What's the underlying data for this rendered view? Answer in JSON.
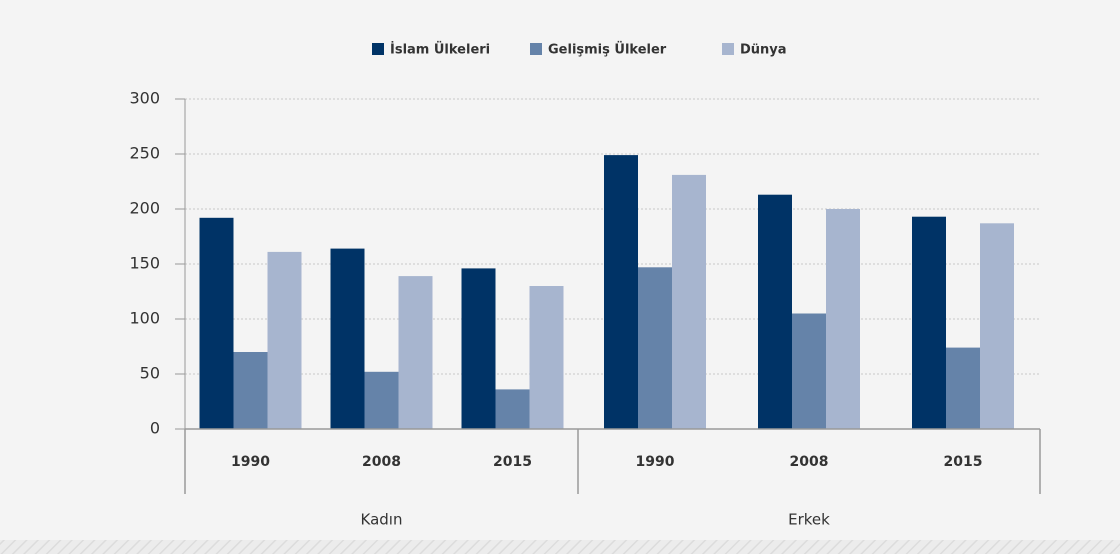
{
  "chart_data": {
    "type": "bar",
    "groups": [
      {
        "label": "Kadın",
        "categories": [
          "1990",
          "2008",
          "2015"
        ]
      },
      {
        "label": "Erkek",
        "categories": [
          "1990",
          "2008",
          "2015"
        ]
      }
    ],
    "series": [
      {
        "name": "İslam Ülkeleri",
        "color": "#003366",
        "values": [
          192,
          164,
          146,
          249,
          213,
          193
        ]
      },
      {
        "name": "Gelişmiş Ülkeler",
        "color": "#6583a9",
        "values": [
          70,
          52,
          36,
          147,
          105,
          74
        ]
      },
      {
        "name": "Dünya",
        "color": "#a7b5cf",
        "values": [
          161,
          139,
          130,
          231,
          200,
          187
        ]
      }
    ],
    "ylim": [
      0,
      300
    ],
    "yticks": [
      0,
      50,
      100,
      150,
      200,
      250,
      300
    ],
    "grid": true,
    "legend": "top"
  }
}
